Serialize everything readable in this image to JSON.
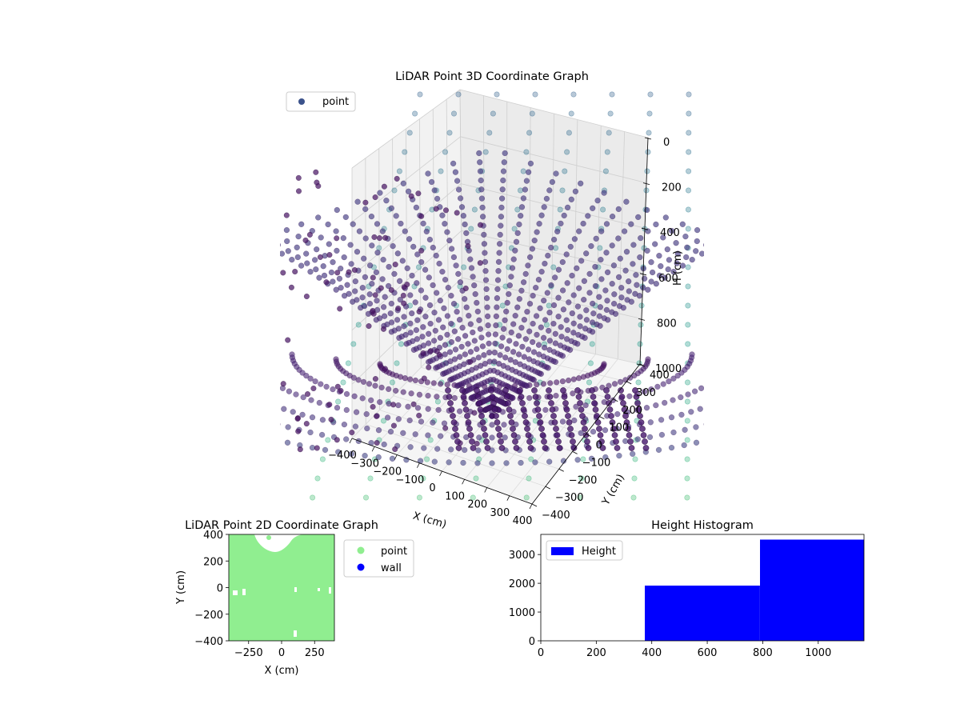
{
  "chart_data": [
    {
      "type": "scatter3d",
      "title": "LiDAR Point 3D Coordinate Graph",
      "xlabel": "X (cm)",
      "ylabel": "Y (cm)",
      "zlabel": "H (cm)",
      "legend": [
        "point"
      ],
      "legend_position": "top-left",
      "colormap": "viridis",
      "grid": true,
      "xticks": [
        "−400",
        "−300",
        "−200",
        "−100",
        "0",
        "100",
        "200",
        "300",
        "400"
      ],
      "yticks": [
        "−400",
        "−300",
        "−200",
        "−100",
        "0",
        "100",
        "200",
        "300",
        "400"
      ],
      "zticks": [
        "0",
        "200",
        "400",
        "600",
        "800",
        "1000"
      ],
      "xlim": [
        -400,
        400
      ],
      "ylim": [
        -400,
        400
      ],
      "zlim": [
        0,
        1000
      ],
      "z_axis_inverted": true
    },
    {
      "type": "scatter",
      "title": "LiDAR Point 2D Coordinate Graph",
      "xlabel": "X (cm)",
      "ylabel": "Y (cm)",
      "xlim": [
        -400,
        400
      ],
      "ylim": [
        -400,
        400
      ],
      "xticks": [
        "−250",
        "0",
        "250"
      ],
      "yticks": [
        "400",
        "200",
        "0",
        "−200",
        "−400"
      ],
      "series": [
        {
          "name": "point",
          "color": "#90ee90"
        },
        {
          "name": "wall",
          "color": "#0000ff"
        }
      ],
      "legend_position": "outside-right"
    },
    {
      "type": "bar",
      "title": "Height Histogram",
      "legend": [
        "Height"
      ],
      "legend_position": "top-left",
      "color": "#0000ff",
      "bins": [
        {
          "start": 0,
          "end": 375,
          "count": 0
        },
        {
          "start": 375,
          "end": 790,
          "count": 1920
        },
        {
          "start": 790,
          "end": 1165,
          "count": 3520
        }
      ],
      "xlim": [
        0,
        1165
      ],
      "ylim": [
        0,
        3700
      ],
      "xticks": [
        0,
        200,
        400,
        600,
        800,
        1000
      ],
      "yticks": [
        0,
        1000,
        2000,
        3000
      ]
    }
  ]
}
